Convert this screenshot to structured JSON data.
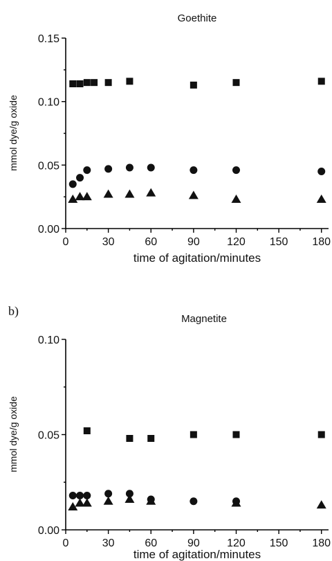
{
  "chart_data": [
    {
      "type": "scatter",
      "panel_tag": "",
      "title": "Goethite",
      "xlabel": "time of agitation/minutes",
      "ylabel": "mmol dye/g oxide",
      "xlim": [
        0,
        185
      ],
      "ylim": [
        0.0,
        0.15
      ],
      "xticks": [
        0,
        30,
        60,
        90,
        120,
        150,
        180
      ],
      "yticks": [
        0.0,
        0.05,
        0.1,
        0.15
      ],
      "ytick_labels": [
        "0.00",
        "0.05",
        "0.10",
        "0.15"
      ],
      "grid": false,
      "series": [
        {
          "marker": "square",
          "color": "#111111",
          "x": [
            5,
            10,
            15,
            20,
            30,
            45,
            90,
            120,
            180
          ],
          "y": [
            0.114,
            0.114,
            0.115,
            0.115,
            0.115,
            0.116,
            0.113,
            0.115,
            0.116
          ]
        },
        {
          "marker": "circle",
          "color": "#111111",
          "x": [
            5,
            10,
            15,
            30,
            45,
            60,
            90,
            120,
            180
          ],
          "y": [
            0.035,
            0.04,
            0.046,
            0.047,
            0.048,
            0.048,
            0.046,
            0.046,
            0.045
          ]
        },
        {
          "marker": "triangle",
          "color": "#111111",
          "x": [
            5,
            10,
            15,
            30,
            45,
            60,
            90,
            120,
            180
          ],
          "y": [
            0.023,
            0.025,
            0.025,
            0.027,
            0.027,
            0.028,
            0.026,
            0.023,
            0.023
          ]
        }
      ]
    },
    {
      "type": "scatter",
      "panel_tag": "b)",
      "title": "Magnetite",
      "xlabel": "time of agitation/minutes",
      "ylabel": "mmol dye/g oxide",
      "xlim": [
        0,
        185
      ],
      "ylim": [
        0.0,
        0.1
      ],
      "xticks": [
        0,
        30,
        60,
        90,
        120,
        150,
        180
      ],
      "yticks": [
        0.0,
        0.05,
        0.1
      ],
      "ytick_labels": [
        "0.00",
        "0.05",
        "0.10"
      ],
      "grid": false,
      "series": [
        {
          "marker": "square",
          "color": "#111111",
          "x": [
            15,
            45,
            60,
            90,
            120,
            180
          ],
          "y": [
            0.052,
            0.048,
            0.048,
            0.05,
            0.05,
            0.05
          ]
        },
        {
          "marker": "circle",
          "color": "#111111",
          "x": [
            5,
            10,
            15,
            30,
            45,
            60,
            90,
            120
          ],
          "y": [
            0.018,
            0.018,
            0.018,
            0.019,
            0.019,
            0.016,
            0.015,
            0.015
          ]
        },
        {
          "marker": "triangle",
          "color": "#111111",
          "x": [
            5,
            10,
            15,
            30,
            45,
            60,
            120,
            180
          ],
          "y": [
            0.012,
            0.014,
            0.014,
            0.015,
            0.016,
            0.015,
            0.014,
            0.013
          ]
        }
      ]
    }
  ]
}
